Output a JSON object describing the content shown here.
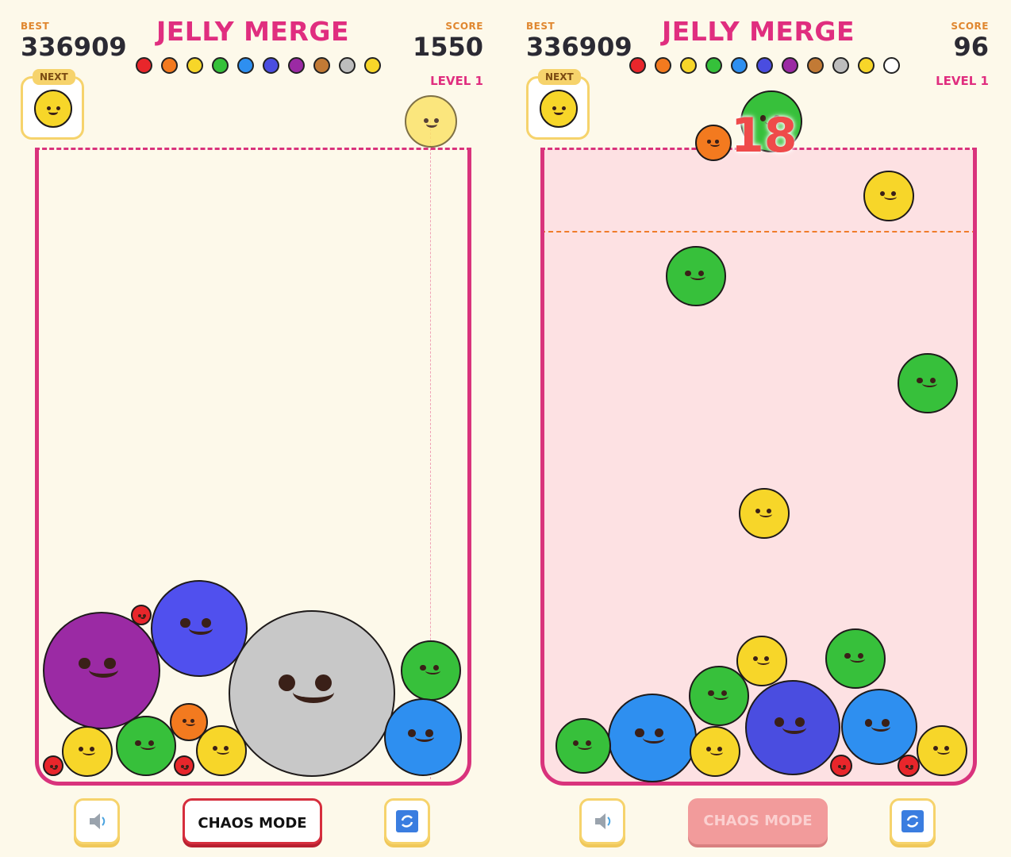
{
  "left": {
    "best_label": "BEST",
    "best_value": "336909",
    "title": "JELLY MERGE",
    "score_label": "SCORE",
    "score_value": "1550",
    "level": "LEVEL 1",
    "next_label": "NEXT",
    "chaos_label": "CHAOS MODE",
    "palette": [
      "#e8262b",
      "#f37a1f",
      "#f7d629",
      "#35c13a",
      "#2e8ff0",
      "#4a4de0",
      "#9b2aa4",
      "#c27a35",
      "#bdbdbd",
      "#f7d629"
    ],
    "blobs": [
      {
        "color": "#9b2aa4"
      },
      {
        "color": "#5050ee"
      },
      {
        "color": "#c8c8c8"
      },
      {
        "color": "#37c03b"
      },
      {
        "color": "#2e8ff0"
      },
      {
        "color": "#f7d629"
      },
      {
        "color": "#37c03b"
      },
      {
        "color": "#f37a1f"
      },
      {
        "color": "#f7d629"
      },
      {
        "color": "#e8262b"
      },
      {
        "color": "#e8262b"
      },
      {
        "color": "#e8262b"
      }
    ],
    "drop_blob": {
      "color": "#fbe36a"
    }
  },
  "right": {
    "best_label": "BEST",
    "best_value": "336909",
    "title": "JELLY MERGE",
    "score_label": "SCORE",
    "score_value": "96",
    "level": "LEVEL 1",
    "next_label": "NEXT",
    "chaos_label": "CHAOS MODE",
    "combo": "18",
    "palette": [
      "#e8262b",
      "#f37a1f",
      "#f7d629",
      "#35c13a",
      "#2e8ff0",
      "#4a4de0",
      "#9b2aa4",
      "#c27a35",
      "#bdbdbd",
      "#f7d629",
      "#ffffff"
    ],
    "blobs": [
      {
        "color": "#37c03b"
      },
      {
        "color": "#f37a1f"
      },
      {
        "color": "#f7d629"
      },
      {
        "color": "#37c03b"
      },
      {
        "color": "#37c03b"
      },
      {
        "color": "#f7d629"
      },
      {
        "color": "#37c03b"
      },
      {
        "color": "#2e8ff0"
      },
      {
        "color": "#f7d629"
      },
      {
        "color": "#37c03b"
      },
      {
        "color": "#f7d629"
      },
      {
        "color": "#37c03b"
      },
      {
        "color": "#4a4de0"
      },
      {
        "color": "#2e8ff0"
      },
      {
        "color": "#f7d629"
      },
      {
        "color": "#e8262b"
      },
      {
        "color": "#e8262b"
      }
    ]
  },
  "icons": {
    "sound": "speaker-icon",
    "restart": "restart-icon"
  }
}
